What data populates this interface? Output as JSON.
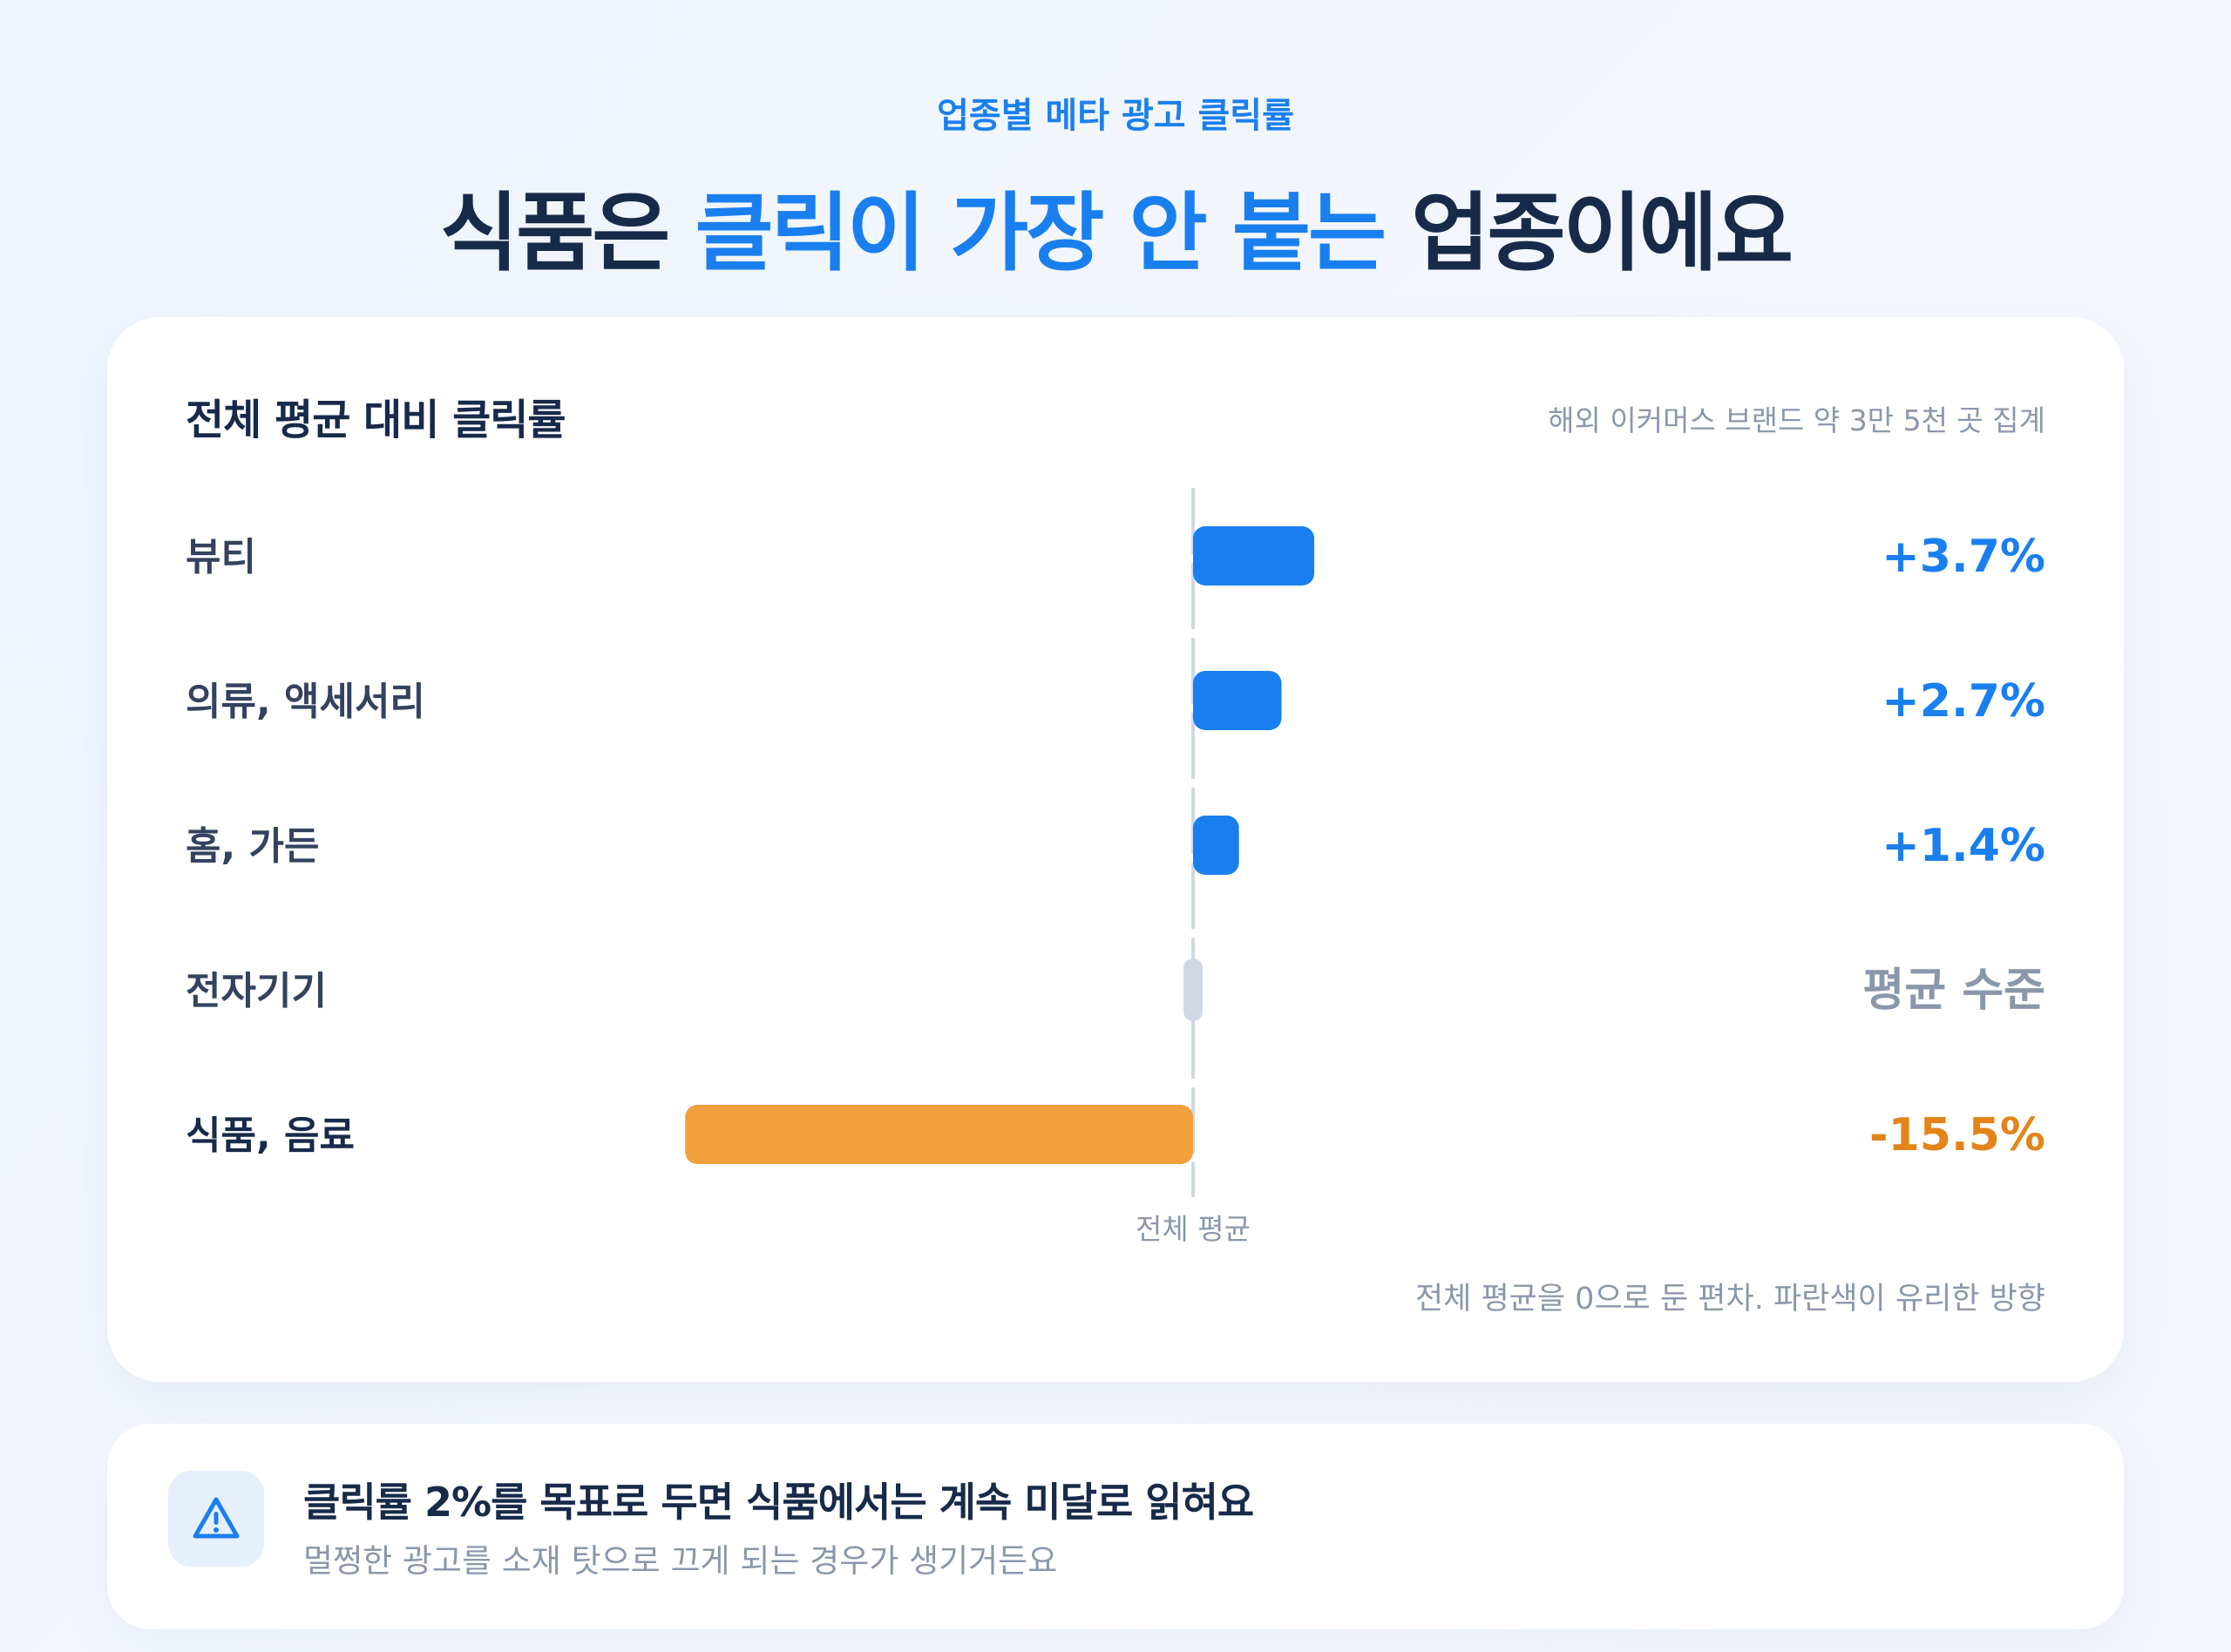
{
  "header": {
    "eyebrow": "업종별 메타 광고 클릭률",
    "headline_parts": [
      {
        "text": "식품은 ",
        "highlight": false
      },
      {
        "text": "클릭이 가장 안 붙는",
        "highlight": true
      },
      {
        "text": " 업종이에요",
        "highlight": false
      }
    ]
  },
  "chart_card": {
    "title": "전체 평균 대비 클릭률",
    "note": "해외 이커머스 브랜드 약 3만 5천 곳 집계",
    "footnote": "전체 평균을 0으로 둔 편차. 파란색이 유리한 방향"
  },
  "chart_data": {
    "type": "bar",
    "orientation": "horizontal",
    "baseline_label": "전체 평균",
    "categories": [
      "뷰티",
      "의류, 액세서리",
      "홈, 가든",
      "전자기기",
      "식품, 음료"
    ],
    "values": [
      3.7,
      2.7,
      1.4,
      0,
      -15.5
    ],
    "value_labels": [
      "+3.7%",
      "+2.7%",
      "+1.4%",
      "평균 수준",
      "-15.5%"
    ],
    "bar_colors": [
      "#1a7fee",
      "#1a7fee",
      "#1a7fee",
      "#cfd8e4",
      "#f0a03c"
    ],
    "label_colors": [
      "#1a7fee",
      "#1a7fee",
      "#1a7fee",
      "#8a97ab",
      "#e3841a"
    ],
    "unit": "%"
  },
  "tip": {
    "icon": "warning-icon",
    "title": "클릭률 2%를 목표로 두면 식품에서는 계속 미달로 읽혀요",
    "subtitle": "멀쩡한 광고를 소재 탓으로 끄게 되는 경우가 생기거든요"
  },
  "colors": {
    "accent": "#1a7fee",
    "negative": "#f0a03c",
    "neutral": "#cfd8e4",
    "text_dark": "#172a4a",
    "text_muted": "#8a97ab"
  }
}
